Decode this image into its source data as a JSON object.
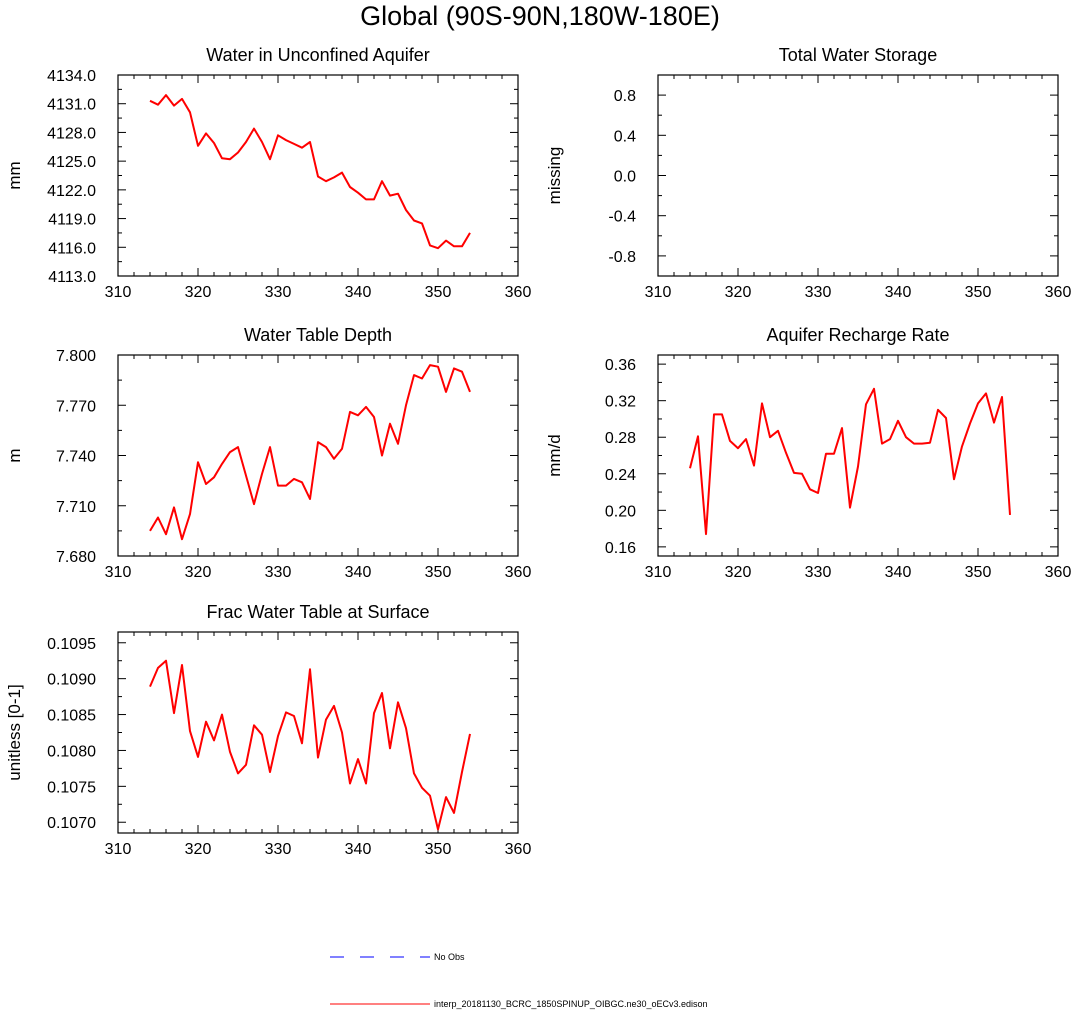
{
  "title": "Global (90S-90N,180W-180E)",
  "colors": {
    "model": "#ff0000",
    "obs": "#0000ff"
  },
  "legend": {
    "obs_label": "No Obs",
    "model_label": "interp_20181130_BCRC_1850SPINUP_OIBGC.ne30_oECv3.edison"
  },
  "chart_data": [
    {
      "type": "line",
      "title": "Water in Unconfined Aquifer",
      "ylabel": "mm",
      "xlim": [
        310,
        360
      ],
      "ylim": [
        4113,
        4134
      ],
      "xticks": [
        310,
        320,
        330,
        340,
        350,
        360
      ],
      "xtick_labels": [
        "310",
        "320",
        "330",
        "340",
        "350",
        "360"
      ],
      "yticks": [
        4113,
        4116,
        4119,
        4122,
        4125,
        4128,
        4131,
        4134
      ],
      "ytick_labels": [
        "4113.0",
        "4116.0",
        "4119.0",
        "4122.0",
        "4125.0",
        "4128.0",
        "4131.0",
        "4134.0"
      ],
      "series": [
        {
          "name": "interp_20181130_BCRC_1850SPINUP_OIBGC.ne30_oECv3.edison",
          "x": [
            314,
            315,
            316,
            317,
            318,
            319,
            320,
            321,
            322,
            323,
            324,
            325,
            326,
            327,
            328,
            329,
            330,
            331,
            332,
            333,
            334,
            335,
            336,
            337,
            338,
            339,
            340,
            341,
            342,
            343,
            344,
            345,
            346,
            347,
            348,
            349,
            350,
            351,
            352,
            353,
            354
          ],
          "values": [
            4131.3,
            4130.9,
            4131.9,
            4130.8,
            4131.5,
            4130.1,
            4126.6,
            4127.9,
            4126.9,
            4125.3,
            4125.2,
            4125.9,
            4127.0,
            4128.4,
            4127.0,
            4125.2,
            4127.7,
            4127.2,
            4126.8,
            4126.4,
            4127.0,
            4123.4,
            4122.9,
            4123.3,
            4123.8,
            4122.3,
            4121.7,
            4121.0,
            4121.0,
            4122.9,
            4121.4,
            4121.6,
            4119.9,
            4118.8,
            4118.5,
            4116.2,
            4115.9,
            4116.7,
            4116.1,
            4116.1,
            4117.5
          ]
        }
      ]
    },
    {
      "type": "line",
      "title": "Total Water Storage",
      "ylabel": "missing",
      "xlim": [
        310,
        360
      ],
      "ylim": [
        -1,
        1
      ],
      "xticks": [
        310,
        320,
        330,
        340,
        350,
        360
      ],
      "xtick_labels": [
        "310",
        "320",
        "330",
        "340",
        "350",
        "360"
      ],
      "yticks": [
        -0.8,
        -0.4,
        0.0,
        0.4,
        0.8
      ],
      "ytick_labels": [
        "-0.8",
        "-0.4",
        "0.0",
        "0.4",
        "0.8"
      ],
      "series": []
    },
    {
      "type": "line",
      "title": "Water Table Depth",
      "ylabel": "m",
      "xlim": [
        310,
        360
      ],
      "ylim": [
        7.68,
        7.8
      ],
      "xticks": [
        310,
        320,
        330,
        340,
        350,
        360
      ],
      "xtick_labels": [
        "310",
        "320",
        "330",
        "340",
        "350",
        "360"
      ],
      "yticks": [
        7.68,
        7.71,
        7.74,
        7.77,
        7.8
      ],
      "ytick_labels": [
        "7.680",
        "7.710",
        "7.740",
        "7.770",
        "7.800"
      ],
      "series": [
        {
          "name": "interp_20181130_BCRC_1850SPINUP_OIBGC.ne30_oECv3.edison",
          "x": [
            314,
            315,
            316,
            317,
            318,
            319,
            320,
            321,
            322,
            323,
            324,
            325,
            326,
            327,
            328,
            329,
            330,
            331,
            332,
            333,
            334,
            335,
            336,
            337,
            338,
            339,
            340,
            341,
            342,
            343,
            344,
            345,
            346,
            347,
            348,
            349,
            350,
            351,
            352,
            353,
            354
          ],
          "values": [
            7.695,
            7.703,
            7.693,
            7.709,
            7.69,
            7.705,
            7.736,
            7.723,
            7.727,
            7.735,
            7.742,
            7.745,
            7.728,
            7.711,
            7.729,
            7.745,
            7.722,
            7.722,
            7.726,
            7.724,
            7.714,
            7.748,
            7.745,
            7.738,
            7.744,
            7.766,
            7.764,
            7.769,
            7.763,
            7.74,
            7.759,
            7.747,
            7.77,
            7.788,
            7.786,
            7.794,
            7.793,
            7.778,
            7.792,
            7.79,
            7.778
          ]
        }
      ]
    },
    {
      "type": "line",
      "title": "Aquifer Recharge Rate",
      "ylabel": "mm/d",
      "xlim": [
        310,
        360
      ],
      "ylim": [
        0.15,
        0.37
      ],
      "xticks": [
        310,
        320,
        330,
        340,
        350,
        360
      ],
      "xtick_labels": [
        "310",
        "320",
        "330",
        "340",
        "350",
        "360"
      ],
      "yticks": [
        0.16,
        0.2,
        0.24,
        0.28,
        0.32,
        0.36
      ],
      "ytick_labels": [
        "0.16",
        "0.20",
        "0.24",
        "0.28",
        "0.32",
        "0.36"
      ],
      "series": [
        {
          "name": "interp_20181130_BCRC_1850SPINUP_OIBGC.ne30_oECv3.edison",
          "x": [
            314,
            315,
            316,
            317,
            318,
            319,
            320,
            321,
            322,
            323,
            324,
            325,
            326,
            327,
            328,
            329,
            330,
            331,
            332,
            333,
            334,
            335,
            336,
            337,
            338,
            339,
            340,
            341,
            342,
            343,
            344,
            345,
            346,
            347,
            348,
            349,
            350,
            351,
            352,
            353,
            354
          ],
          "values": [
            0.246,
            0.281,
            0.174,
            0.305,
            0.305,
            0.276,
            0.268,
            0.278,
            0.249,
            0.317,
            0.28,
            0.287,
            0.263,
            0.241,
            0.24,
            0.223,
            0.219,
            0.262,
            0.262,
            0.29,
            0.203,
            0.248,
            0.316,
            0.333,
            0.273,
            0.278,
            0.298,
            0.28,
            0.273,
            0.273,
            0.274,
            0.31,
            0.301,
            0.234,
            0.27,
            0.295,
            0.317,
            0.328,
            0.296,
            0.324,
            0.195
          ]
        }
      ]
    },
    {
      "type": "line",
      "title": "Frac Water Table at Surface",
      "ylabel": "unitless [0-1]",
      "xlim": [
        310,
        360
      ],
      "ylim": [
        0.10685,
        0.10965
      ],
      "xticks": [
        310,
        320,
        330,
        340,
        350,
        360
      ],
      "xtick_labels": [
        "310",
        "320",
        "330",
        "340",
        "350",
        "360"
      ],
      "yticks": [
        0.107,
        0.1075,
        0.108,
        0.1085,
        0.109,
        0.1095
      ],
      "ytick_labels": [
        "0.1070",
        "0.1075",
        "0.1080",
        "0.1085",
        "0.1090",
        "0.1095"
      ],
      "series": [
        {
          "name": "interp_20181130_BCRC_1850SPINUP_OIBGC.ne30_oECv3.edison",
          "x": [
            314,
            315,
            316,
            317,
            318,
            319,
            320,
            321,
            322,
            323,
            324,
            325,
            326,
            327,
            328,
            329,
            330,
            331,
            332,
            333,
            334,
            335,
            336,
            337,
            338,
            339,
            340,
            341,
            342,
            343,
            344,
            345,
            346,
            347,
            348,
            349,
            350,
            351,
            352,
            353,
            354
          ],
          "values": [
            0.10889,
            0.10915,
            0.10925,
            0.10852,
            0.10919,
            0.10827,
            0.10791,
            0.1084,
            0.10814,
            0.1085,
            0.10798,
            0.10768,
            0.1078,
            0.10835,
            0.10822,
            0.1077,
            0.1082,
            0.10853,
            0.10848,
            0.1081,
            0.10913,
            0.1079,
            0.10843,
            0.10862,
            0.10825,
            0.10754,
            0.10788,
            0.10754,
            0.10852,
            0.1088,
            0.10803,
            0.10867,
            0.10831,
            0.10768,
            0.10748,
            0.10737,
            0.1069,
            0.10735,
            0.10713,
            0.1077,
            0.10823
          ]
        }
      ]
    }
  ]
}
